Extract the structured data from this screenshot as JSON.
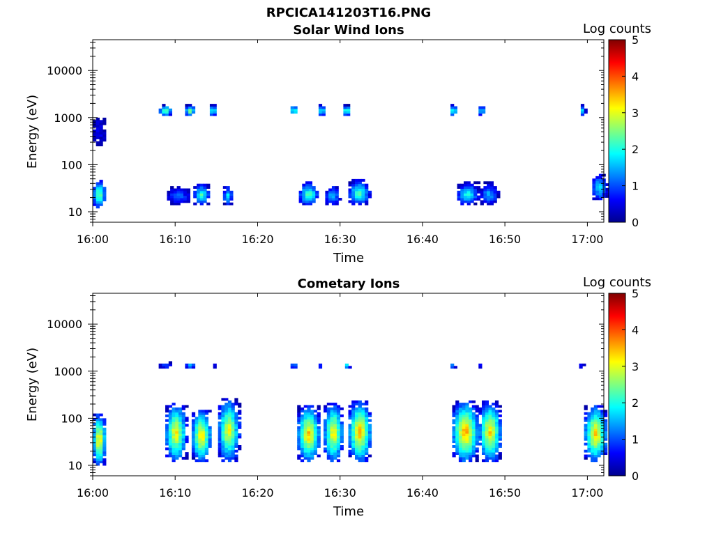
{
  "figure": {
    "title": "RPCICA141203T16.PNG"
  },
  "colormap": "jet",
  "chart_data": [
    {
      "type": "heatmap",
      "title": "Solar Wind Ions",
      "xlabel": "Time",
      "ylabel": "Energy (eV)",
      "xlim": [
        "16:00",
        "17:02"
      ],
      "ylim": [
        6,
        45000
      ],
      "yscale": "log",
      "x_ticks": [
        "16:00",
        "16:10",
        "16:20",
        "16:30",
        "16:40",
        "16:50",
        "17:00"
      ],
      "y_ticks": [
        "10",
        "100",
        "1000",
        "10000"
      ],
      "colorbar": {
        "label": "Log counts",
        "range": [
          0,
          5
        ],
        "ticks": [
          "0",
          "1",
          "2",
          "3",
          "4",
          "5"
        ]
      },
      "blobs_note": "time range (min after 16:00), energy range (eV), peak log counts",
      "blobs": [
        {
          "t": [
            0.0,
            1.6
          ],
          "e": [
            12,
            45
          ],
          "peak": 2.7
        },
        {
          "t": [
            0.0,
            1.6
          ],
          "e": [
            250,
            1100
          ],
          "peak": 0.6
        },
        {
          "t": [
            8.0,
            9.6
          ],
          "e": [
            1100,
            1800
          ],
          "peak": 2.8
        },
        {
          "t": [
            9.0,
            11.8
          ],
          "e": [
            14,
            35
          ],
          "peak": 1.2
        },
        {
          "t": [
            11.2,
            12.4
          ],
          "e": [
            1100,
            1800
          ],
          "peak": 2.9
        },
        {
          "t": [
            12.2,
            14.2
          ],
          "e": [
            14,
            38
          ],
          "peak": 2.3
        },
        {
          "t": [
            14.2,
            15.0
          ],
          "e": [
            1100,
            1800
          ],
          "peak": 2.6
        },
        {
          "t": [
            15.8,
            17.0
          ],
          "e": [
            14,
            35
          ],
          "peak": 2.0
        },
        {
          "t": [
            24.0,
            24.8
          ],
          "e": [
            1100,
            1800
          ],
          "peak": 2.9
        },
        {
          "t": [
            25.0,
            27.4
          ],
          "e": [
            14,
            40
          ],
          "peak": 2.5
        },
        {
          "t": [
            27.4,
            28.2
          ],
          "e": [
            1100,
            1800
          ],
          "peak": 2.6
        },
        {
          "t": [
            28.2,
            30.0
          ],
          "e": [
            14,
            35
          ],
          "peak": 1.8
        },
        {
          "t": [
            30.4,
            31.2
          ],
          "e": [
            1100,
            1800
          ],
          "peak": 3.0
        },
        {
          "t": [
            31.0,
            33.6
          ],
          "e": [
            14,
            45
          ],
          "peak": 2.4
        },
        {
          "t": [
            43.4,
            44.2
          ],
          "e": [
            1100,
            1800
          ],
          "peak": 2.9
        },
        {
          "t": [
            44.2,
            46.8
          ],
          "e": [
            14,
            40
          ],
          "peak": 2.2
        },
        {
          "t": [
            46.8,
            47.6
          ],
          "e": [
            1100,
            1800
          ],
          "peak": 2.6
        },
        {
          "t": [
            47.0,
            49.2
          ],
          "e": [
            14,
            40
          ],
          "peak": 1.6
        },
        {
          "t": [
            59.2,
            59.8
          ],
          "e": [
            1100,
            1800
          ],
          "peak": 2.3
        },
        {
          "t": [
            60.6,
            62.4
          ],
          "e": [
            18,
            60
          ],
          "peak": 2.0
        }
      ]
    },
    {
      "type": "heatmap",
      "title": "Cometary Ions",
      "xlabel": "Time",
      "ylabel": "Energy (eV)",
      "xlim": [
        "16:00",
        "17:02"
      ],
      "ylim": [
        6,
        45000
      ],
      "yscale": "log",
      "x_ticks": [
        "16:00",
        "16:10",
        "16:20",
        "16:30",
        "16:40",
        "16:50",
        "17:00"
      ],
      "y_ticks": [
        "10",
        "100",
        "1000",
        "10000"
      ],
      "colorbar": {
        "label": "Log counts",
        "range": [
          0,
          5
        ],
        "ticks": [
          "0",
          "1",
          "2",
          "3",
          "4",
          "5"
        ]
      },
      "blobs_note": "time range (min after 16:00), energy range (eV), peak log counts",
      "blobs": [
        {
          "t": [
            0.0,
            1.6
          ],
          "e": [
            10,
            120
          ],
          "peak": 3.6
        },
        {
          "t": [
            8.0,
            9.6
          ],
          "e": [
            1150,
            1500
          ],
          "peak": 1.2
        },
        {
          "t": [
            8.8,
            11.4
          ],
          "e": [
            12,
            200
          ],
          "peak": 3.4
        },
        {
          "t": [
            11.2,
            12.4
          ],
          "e": [
            1150,
            1500
          ],
          "peak": 2.0
        },
        {
          "t": [
            12.0,
            14.4
          ],
          "e": [
            12,
            150
          ],
          "peak": 3.5
        },
        {
          "t": [
            14.6,
            15.2
          ],
          "e": [
            1150,
            1500
          ],
          "peak": 0.8
        },
        {
          "t": [
            15.2,
            17.8
          ],
          "e": [
            12,
            250
          ],
          "peak": 3.3
        },
        {
          "t": [
            24.0,
            24.8
          ],
          "e": [
            1150,
            1500
          ],
          "peak": 1.8
        },
        {
          "t": [
            24.8,
            27.6
          ],
          "e": [
            12,
            180
          ],
          "peak": 3.6
        },
        {
          "t": [
            27.4,
            28.0
          ],
          "e": [
            1150,
            1500
          ],
          "peak": 1.0
        },
        {
          "t": [
            28.0,
            30.4
          ],
          "e": [
            12,
            200
          ],
          "peak": 3.4
        },
        {
          "t": [
            30.6,
            31.2
          ],
          "e": [
            1150,
            1500
          ],
          "peak": 2.5
        },
        {
          "t": [
            31.0,
            33.8
          ],
          "e": [
            12,
            220
          ],
          "peak": 3.7
        },
        {
          "t": [
            43.4,
            44.0
          ],
          "e": [
            1150,
            1500
          ],
          "peak": 1.8
        },
        {
          "t": [
            43.6,
            46.8
          ],
          "e": [
            12,
            220
          ],
          "peak": 3.8
        },
        {
          "t": [
            46.8,
            47.2
          ],
          "e": [
            1150,
            1500
          ],
          "peak": 0.8
        },
        {
          "t": [
            46.8,
            49.6
          ],
          "e": [
            12,
            220
          ],
          "peak": 3.5
        },
        {
          "t": [
            59.0,
            59.6
          ],
          "e": [
            1150,
            1500
          ],
          "peak": 0.7
        },
        {
          "t": [
            59.6,
            62.4
          ],
          "e": [
            12,
            180
          ],
          "peak": 3.6
        }
      ]
    }
  ]
}
